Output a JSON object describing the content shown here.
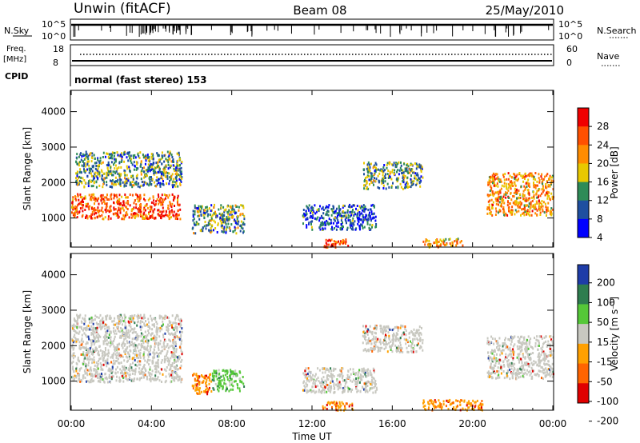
{
  "header": {
    "left": "Unwin (fitACF)",
    "center": "Beam 08",
    "right": "25/May/2010"
  },
  "strip_labels": {
    "nsky": "N.Sky",
    "nsky_ticks": [
      "10^5",
      "10^0"
    ],
    "nsearch": "N.Search",
    "nsearch_ticks": [
      "10^5",
      "10^0"
    ],
    "freq_line1": "Freq.",
    "freq_line2": "[MHz]",
    "freq_ticks": [
      "18",
      "8"
    ],
    "nave": "Nave",
    "nave_ticks": [
      "60",
      "0"
    ],
    "cpid": "CPID",
    "mode": "normal (fast stereo) 153"
  },
  "colors": {
    "no_data": "#ffffff",
    "ground_scatter": "#c8c8c0",
    "frame": "#000000"
  },
  "chart_data": [
    {
      "type": "heatmap",
      "title": "",
      "parameter": "Power",
      "ylabel": "Slant Range [km]",
      "xlabel": "",
      "ylim": [
        180,
        4600
      ],
      "y_ticks": [
        "1000",
        "2000",
        "3000",
        "4000"
      ],
      "x_ticks": [],
      "colorbar": {
        "label": "Power [dB]",
        "ticks": [
          "28",
          "24",
          "20",
          "16",
          "12",
          "8",
          "4"
        ],
        "colors": [
          "#f00000",
          "#ff5000",
          "#ff8c00",
          "#e8c800",
          "#2e8b57",
          "#1e4fa0",
          "#0000ff"
        ]
      },
      "echo_regions": [
        {
          "t": [
            0.0,
            5.4
          ],
          "r": [
            1000,
            1700
          ],
          "power_db": 24
        },
        {
          "t": [
            0.2,
            5.5
          ],
          "r": [
            1900,
            2900
          ],
          "power_db": 12
        },
        {
          "t": [
            6.0,
            8.6
          ],
          "r": [
            600,
            1400
          ],
          "power_db": 12
        },
        {
          "t": [
            11.5,
            15.2
          ],
          "r": [
            700,
            1400
          ],
          "power_db": 8
        },
        {
          "t": [
            12.5,
            13.8
          ],
          "r": [
            200,
            450
          ],
          "power_db": 24
        },
        {
          "t": [
            14.5,
            17.5
          ],
          "r": [
            1850,
            2600
          ],
          "power_db": 12
        },
        {
          "t": [
            17.5,
            19.5
          ],
          "r": [
            200,
            450
          ],
          "power_db": 20
        },
        {
          "t": [
            20.7,
            24.0
          ],
          "r": [
            1100,
            2300
          ],
          "power_db": 20
        }
      ]
    },
    {
      "type": "heatmap",
      "title": "",
      "parameter": "Velocity",
      "ylabel": "Slant Range [km]",
      "xlabel": "Time UT",
      "ylim": [
        180,
        4600
      ],
      "y_ticks": [
        "1000",
        "2000",
        "3000",
        "4000"
      ],
      "x_ticks": [
        "00:00",
        "04:00",
        "08:00",
        "12:00",
        "16:00",
        "20:00",
        "00:00"
      ],
      "x_range_hours": [
        0,
        24
      ],
      "colorbar": {
        "label": "Velocity [m s⁻¹]",
        "ticks": [
          "200",
          "100",
          "50",
          "15",
          "-15",
          "-50",
          "-100",
          "-200"
        ],
        "colors": [
          "#1e3ca8",
          "#2e7d4f",
          "#55c838",
          "#c8c8c0",
          "#ffa000",
          "#ff6400",
          "#e00000"
        ]
      },
      "echo_regions": [
        {
          "t": [
            0.0,
            5.5
          ],
          "r": [
            1000,
            2900
          ],
          "velocity": 0
        },
        {
          "t": [
            6.0,
            7.0
          ],
          "r": [
            650,
            1250
          ],
          "velocity": -50
        },
        {
          "t": [
            7.0,
            8.6
          ],
          "r": [
            750,
            1350
          ],
          "velocity": 50
        },
        {
          "t": [
            11.5,
            15.2
          ],
          "r": [
            700,
            1400
          ],
          "velocity": 0
        },
        {
          "t": [
            12.5,
            14.0
          ],
          "r": [
            200,
            450
          ],
          "velocity": -50
        },
        {
          "t": [
            14.5,
            17.5
          ],
          "r": [
            1850,
            2600
          ],
          "velocity": 0
        },
        {
          "t": [
            17.5,
            20.5
          ],
          "r": [
            200,
            500
          ],
          "velocity": -50
        },
        {
          "t": [
            20.7,
            24.0
          ],
          "r": [
            1100,
            2300
          ],
          "velocity": 0
        }
      ]
    }
  ]
}
